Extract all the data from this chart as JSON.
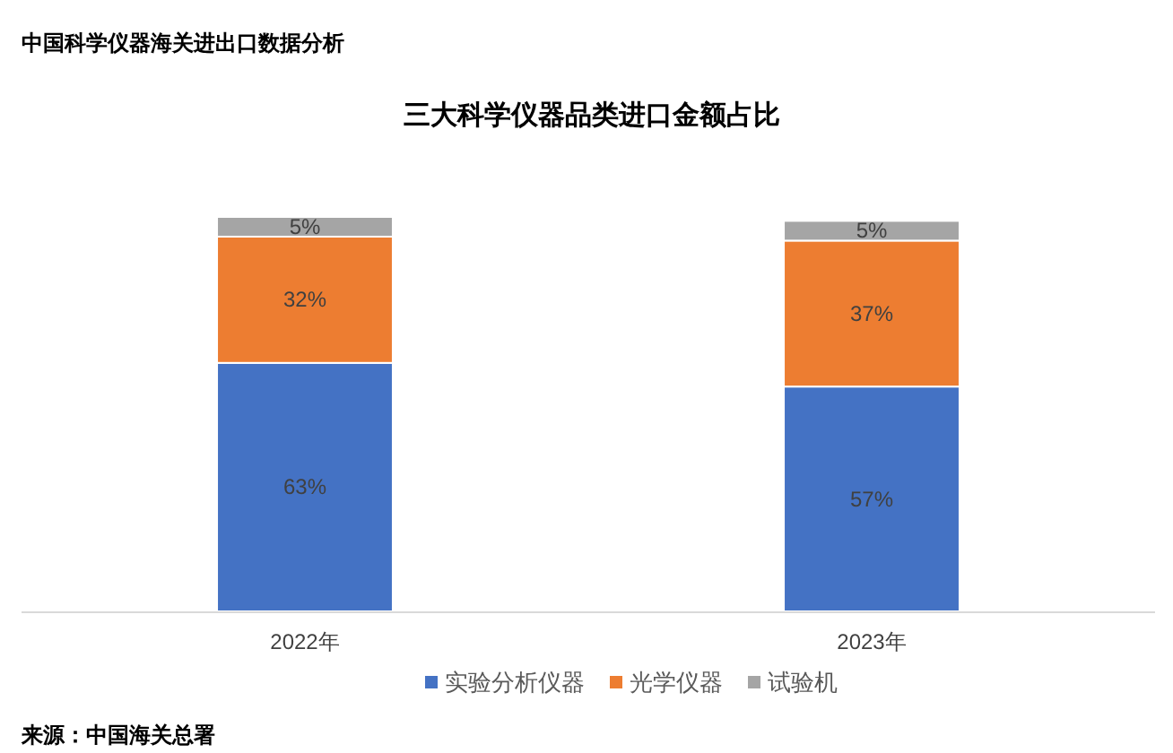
{
  "chart_data": {
    "type": "bar",
    "stacked": true,
    "title": "三大科学仪器品类进口金额占比",
    "subtitle": "中国科学仪器海关进出口数据分析",
    "categories": [
      "2022年",
      "2023年"
    ],
    "series": [
      {
        "name": "实验分析仪器",
        "color": "#4472c4",
        "values": [
          63,
          57
        ],
        "value_labels": [
          "63%",
          "57%"
        ]
      },
      {
        "name": "光学仪器",
        "color": "#ed7d31",
        "values": [
          32,
          37
        ],
        "value_labels": [
          "32%",
          "37%"
        ]
      },
      {
        "name": "试验机",
        "color": "#a5a5a5",
        "values": [
          5,
          5
        ],
        "value_labels": [
          "5%",
          "5%"
        ]
      }
    ],
    "legend": "bottom",
    "annotations": [
      "来源：中国海关总署"
    ]
  }
}
